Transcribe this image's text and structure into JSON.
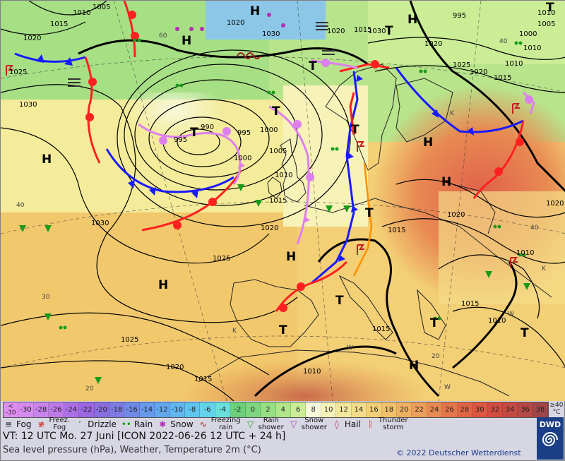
{
  "map": {
    "isobar_labels": [
      "1010",
      "1005",
      "1015",
      "1020",
      "1020",
      "1025",
      "1030",
      "1025",
      "995",
      "1000",
      "990",
      "995",
      "1000",
      "1005",
      "1010",
      "1015",
      "1020",
      "1025",
      "1030",
      "1020",
      "1015",
      "1010",
      "1005",
      "995",
      "1000",
      "1010",
      "1015",
      "1020",
      "1010",
      "1025",
      "1020",
      "1030",
      "1015",
      "1015",
      "1020",
      "1030",
      "1020",
      "1005",
      "1010",
      "1015",
      "1015",
      "1010",
      "1010",
      "1015",
      "1010",
      "1015",
      "1020",
      "1015",
      "1020",
      "1025"
    ],
    "pressure_centers": [
      "H",
      "H",
      "H",
      "H",
      "H",
      "H",
      "H",
      "H",
      "H",
      "T",
      "T",
      "T",
      "T",
      "T",
      "T",
      "T",
      "T",
      "T",
      "T",
      "T"
    ],
    "temperature_labels": [
      "60",
      "40",
      "40",
      "30",
      "20",
      "20",
      "40",
      "K",
      "K",
      "K",
      "W",
      "W",
      "W"
    ],
    "colors": {
      "warm_front": "#ff2020",
      "cold_front": "#1a1aff",
      "occlusion": "#dd80ee",
      "trough": "#ff9000",
      "isobar": "#000000"
    }
  },
  "scale": {
    "first_label_top": "<",
    "first_label_bottom": "-30",
    "values": [
      "-30",
      "-28",
      "-26",
      "-24",
      "-22",
      "-20",
      "-18",
      "-16",
      "-14",
      "-12",
      "-10",
      "-8",
      "-6",
      "-4",
      "-2",
      "0",
      "2",
      "4",
      "6",
      "8",
      "10",
      "12",
      "14",
      "16",
      "18",
      "20",
      "22",
      "24",
      "26",
      "28",
      "30",
      "32",
      "34",
      "36",
      "38"
    ],
    "colors": [
      "#e08ef0",
      "#d68cee",
      "#c983ec",
      "#bd7ae8",
      "#ad6fe6",
      "#9a66e2",
      "#8a6ee0",
      "#7e7ce4",
      "#6f8be8",
      "#6799ec",
      "#62a8ef",
      "#5fb6f0",
      "#5fc5f0",
      "#62d3ea",
      "#6ae0dc",
      "#6ccf7a",
      "#7ed67e",
      "#96df82",
      "#b0e688",
      "#cbed95",
      "#f6f8dc",
      "#f6f2b8",
      "#f4e79a",
      "#f4dc88",
      "#f3cf76",
      "#f2c26a",
      "#efb062",
      "#ec9e5a",
      "#e88a52",
      "#e4764a",
      "#e06444",
      "#dc5640",
      "#d24c40",
      "#c44a42",
      "#b44846",
      "#a0464a"
    ],
    "unit_top": "≥40",
    "unit_bottom": "°C"
  },
  "legend": [
    {
      "icon": "fog-icon",
      "label": "Fog"
    },
    {
      "icon": "freezing-fog-icon",
      "label_line1": "Freez.",
      "label_line2": "Fog"
    },
    {
      "icon": "drizzle-icon",
      "label": "Drizzle"
    },
    {
      "icon": "rain-icon",
      "label": "Rain"
    },
    {
      "icon": "snow-icon",
      "label": "Snow"
    },
    {
      "icon": "freezing-rain-icon",
      "label_line1": "Freezing",
      "label_line2": "rain"
    },
    {
      "icon": "rain-shower-icon",
      "label_line1": "Rain",
      "label_line2": "shower"
    },
    {
      "icon": "snow-shower-icon",
      "label_line1": "Snow",
      "label_line2": "shower"
    },
    {
      "icon": "hail-icon",
      "label": "Hail"
    },
    {
      "icon": "thunderstorm-icon",
      "label_line1": "Thunder",
      "label_line2": "storm"
    }
  ],
  "info": {
    "valid_time": "VT: 12 UTC Mo.   27 Juni [ICON 2022-06-26  12 UTC + 24 h]",
    "description": "Sea level pressure (hPa), Weather, Temperature 2m (°C)",
    "copyright": "© 2022 Deutscher Wetterdienst",
    "logo_text": "DWD"
  }
}
